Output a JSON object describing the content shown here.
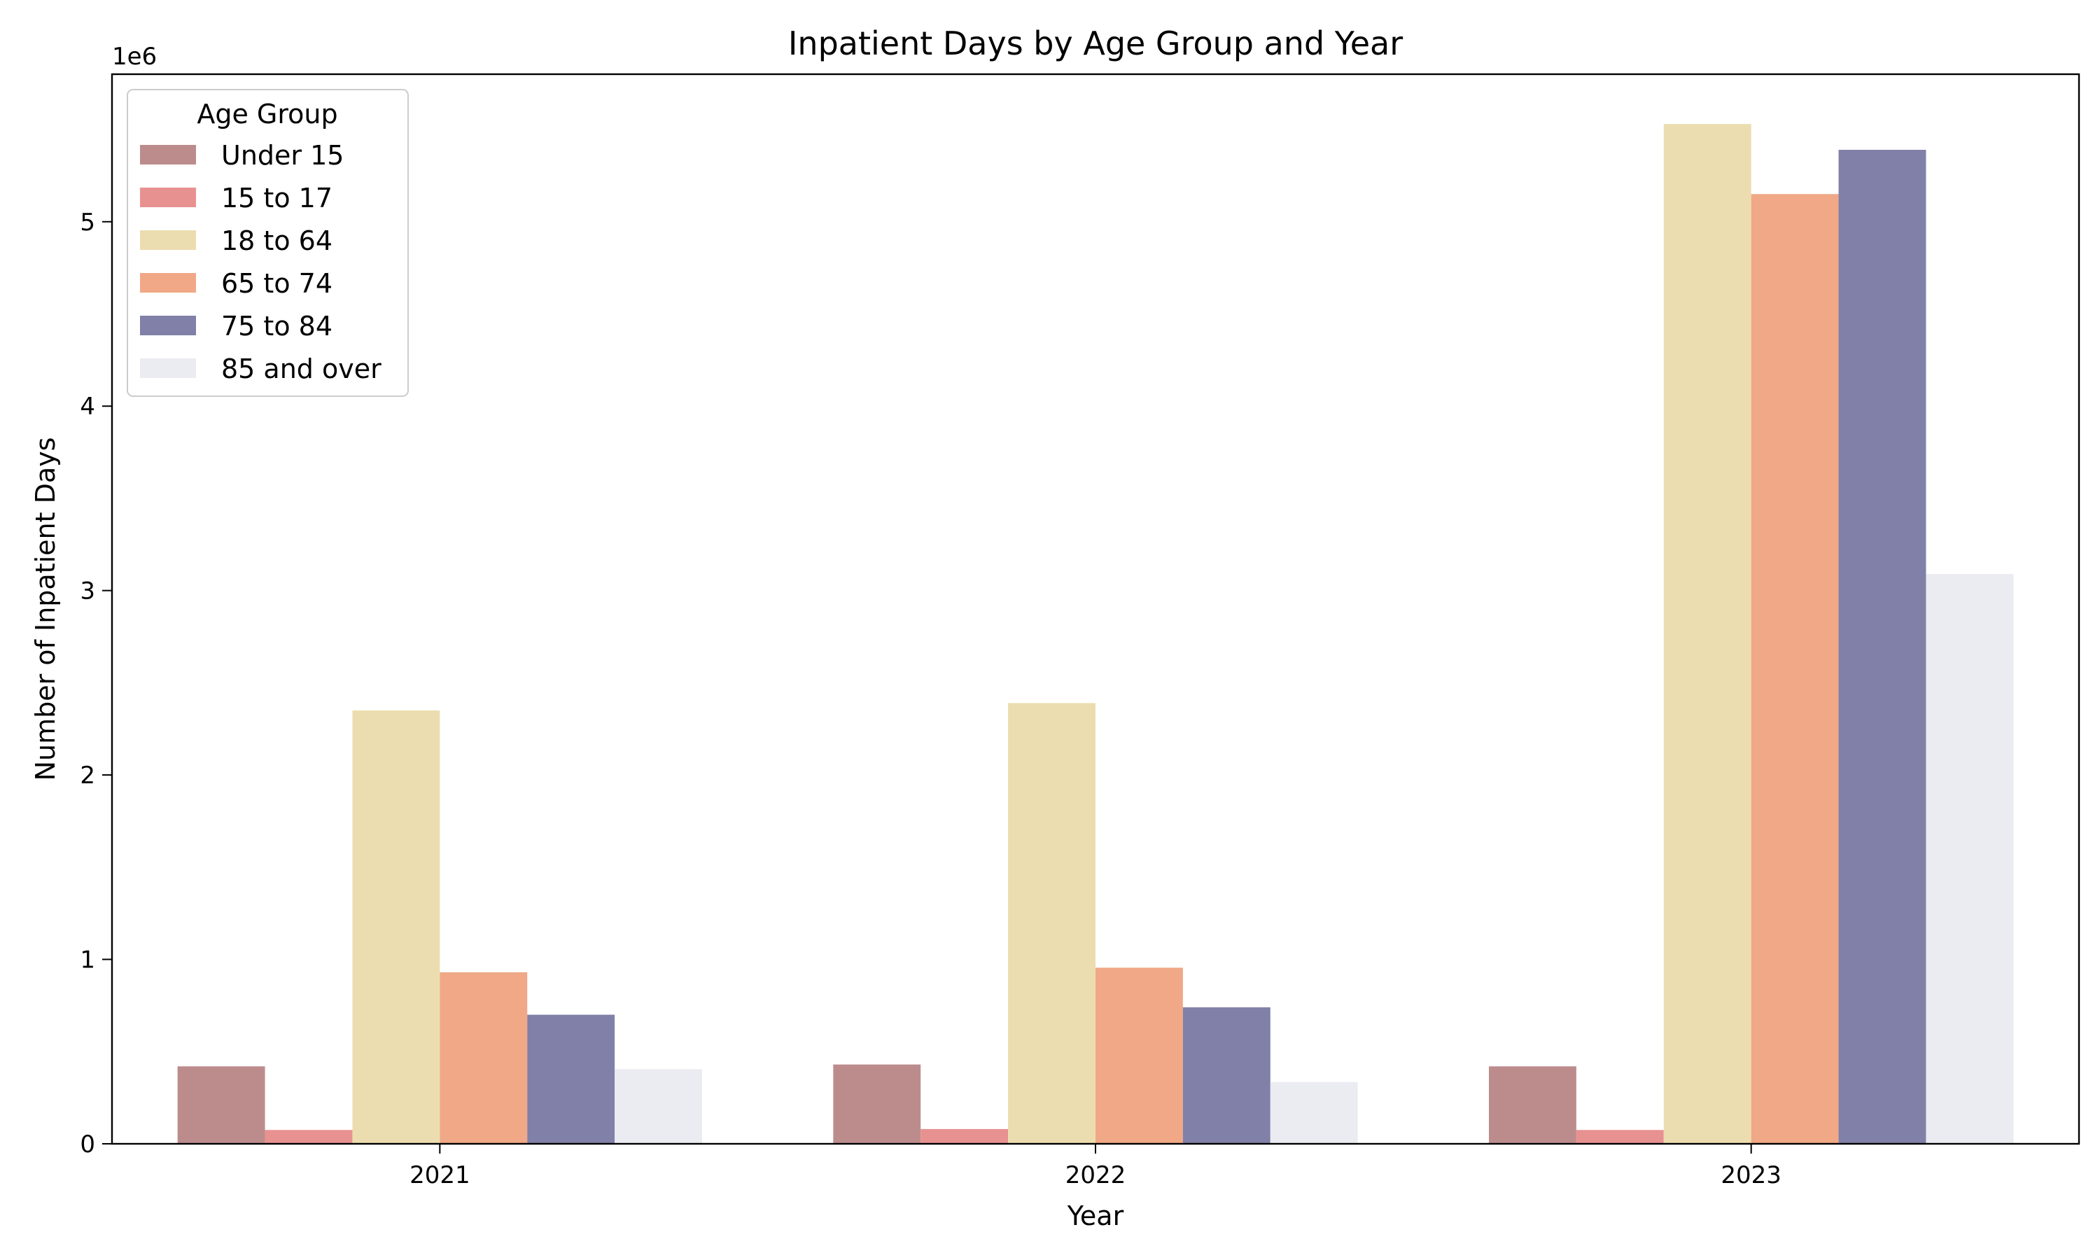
{
  "chart_data": {
    "type": "bar",
    "title": "Inpatient Days by Age Group and Year",
    "xlabel": "Year",
    "ylabel": "Number of Inpatient Days",
    "y_offset_text": "1e6",
    "y_scale_multiplier": 1000000,
    "categories": [
      "2021",
      "2022",
      "2023"
    ],
    "ylim": [
      0,
      5800000
    ],
    "yticks": [
      0,
      1000000,
      2000000,
      3000000,
      4000000,
      5000000
    ],
    "ytick_labels": [
      "0",
      "1",
      "2",
      "3",
      "4",
      "5"
    ],
    "grid": false,
    "legend": {
      "title": "Age Group",
      "placement": "top-left"
    },
    "series": [
      {
        "name": "Under 15",
        "color": "#bc8c8c",
        "values": [
          420000,
          430000,
          420000
        ]
      },
      {
        "name": "15 to 17",
        "color": "#e89191",
        "values": [
          75000,
          80000,
          75000
        ]
      },
      {
        "name": "18 to 64",
        "color": "#ecddb0",
        "values": [
          2350000,
          2390000,
          5530000
        ]
      },
      {
        "name": "65 to 74",
        "color": "#f0a886",
        "values": [
          930000,
          955000,
          5150000
        ]
      },
      {
        "name": "75 to 84",
        "color": "#8080a8",
        "values": [
          700000,
          740000,
          5390000
        ]
      },
      {
        "name": "85 and over",
        "color": "#ebebf2",
        "values": [
          405000,
          335000,
          3090000
        ]
      }
    ]
  }
}
